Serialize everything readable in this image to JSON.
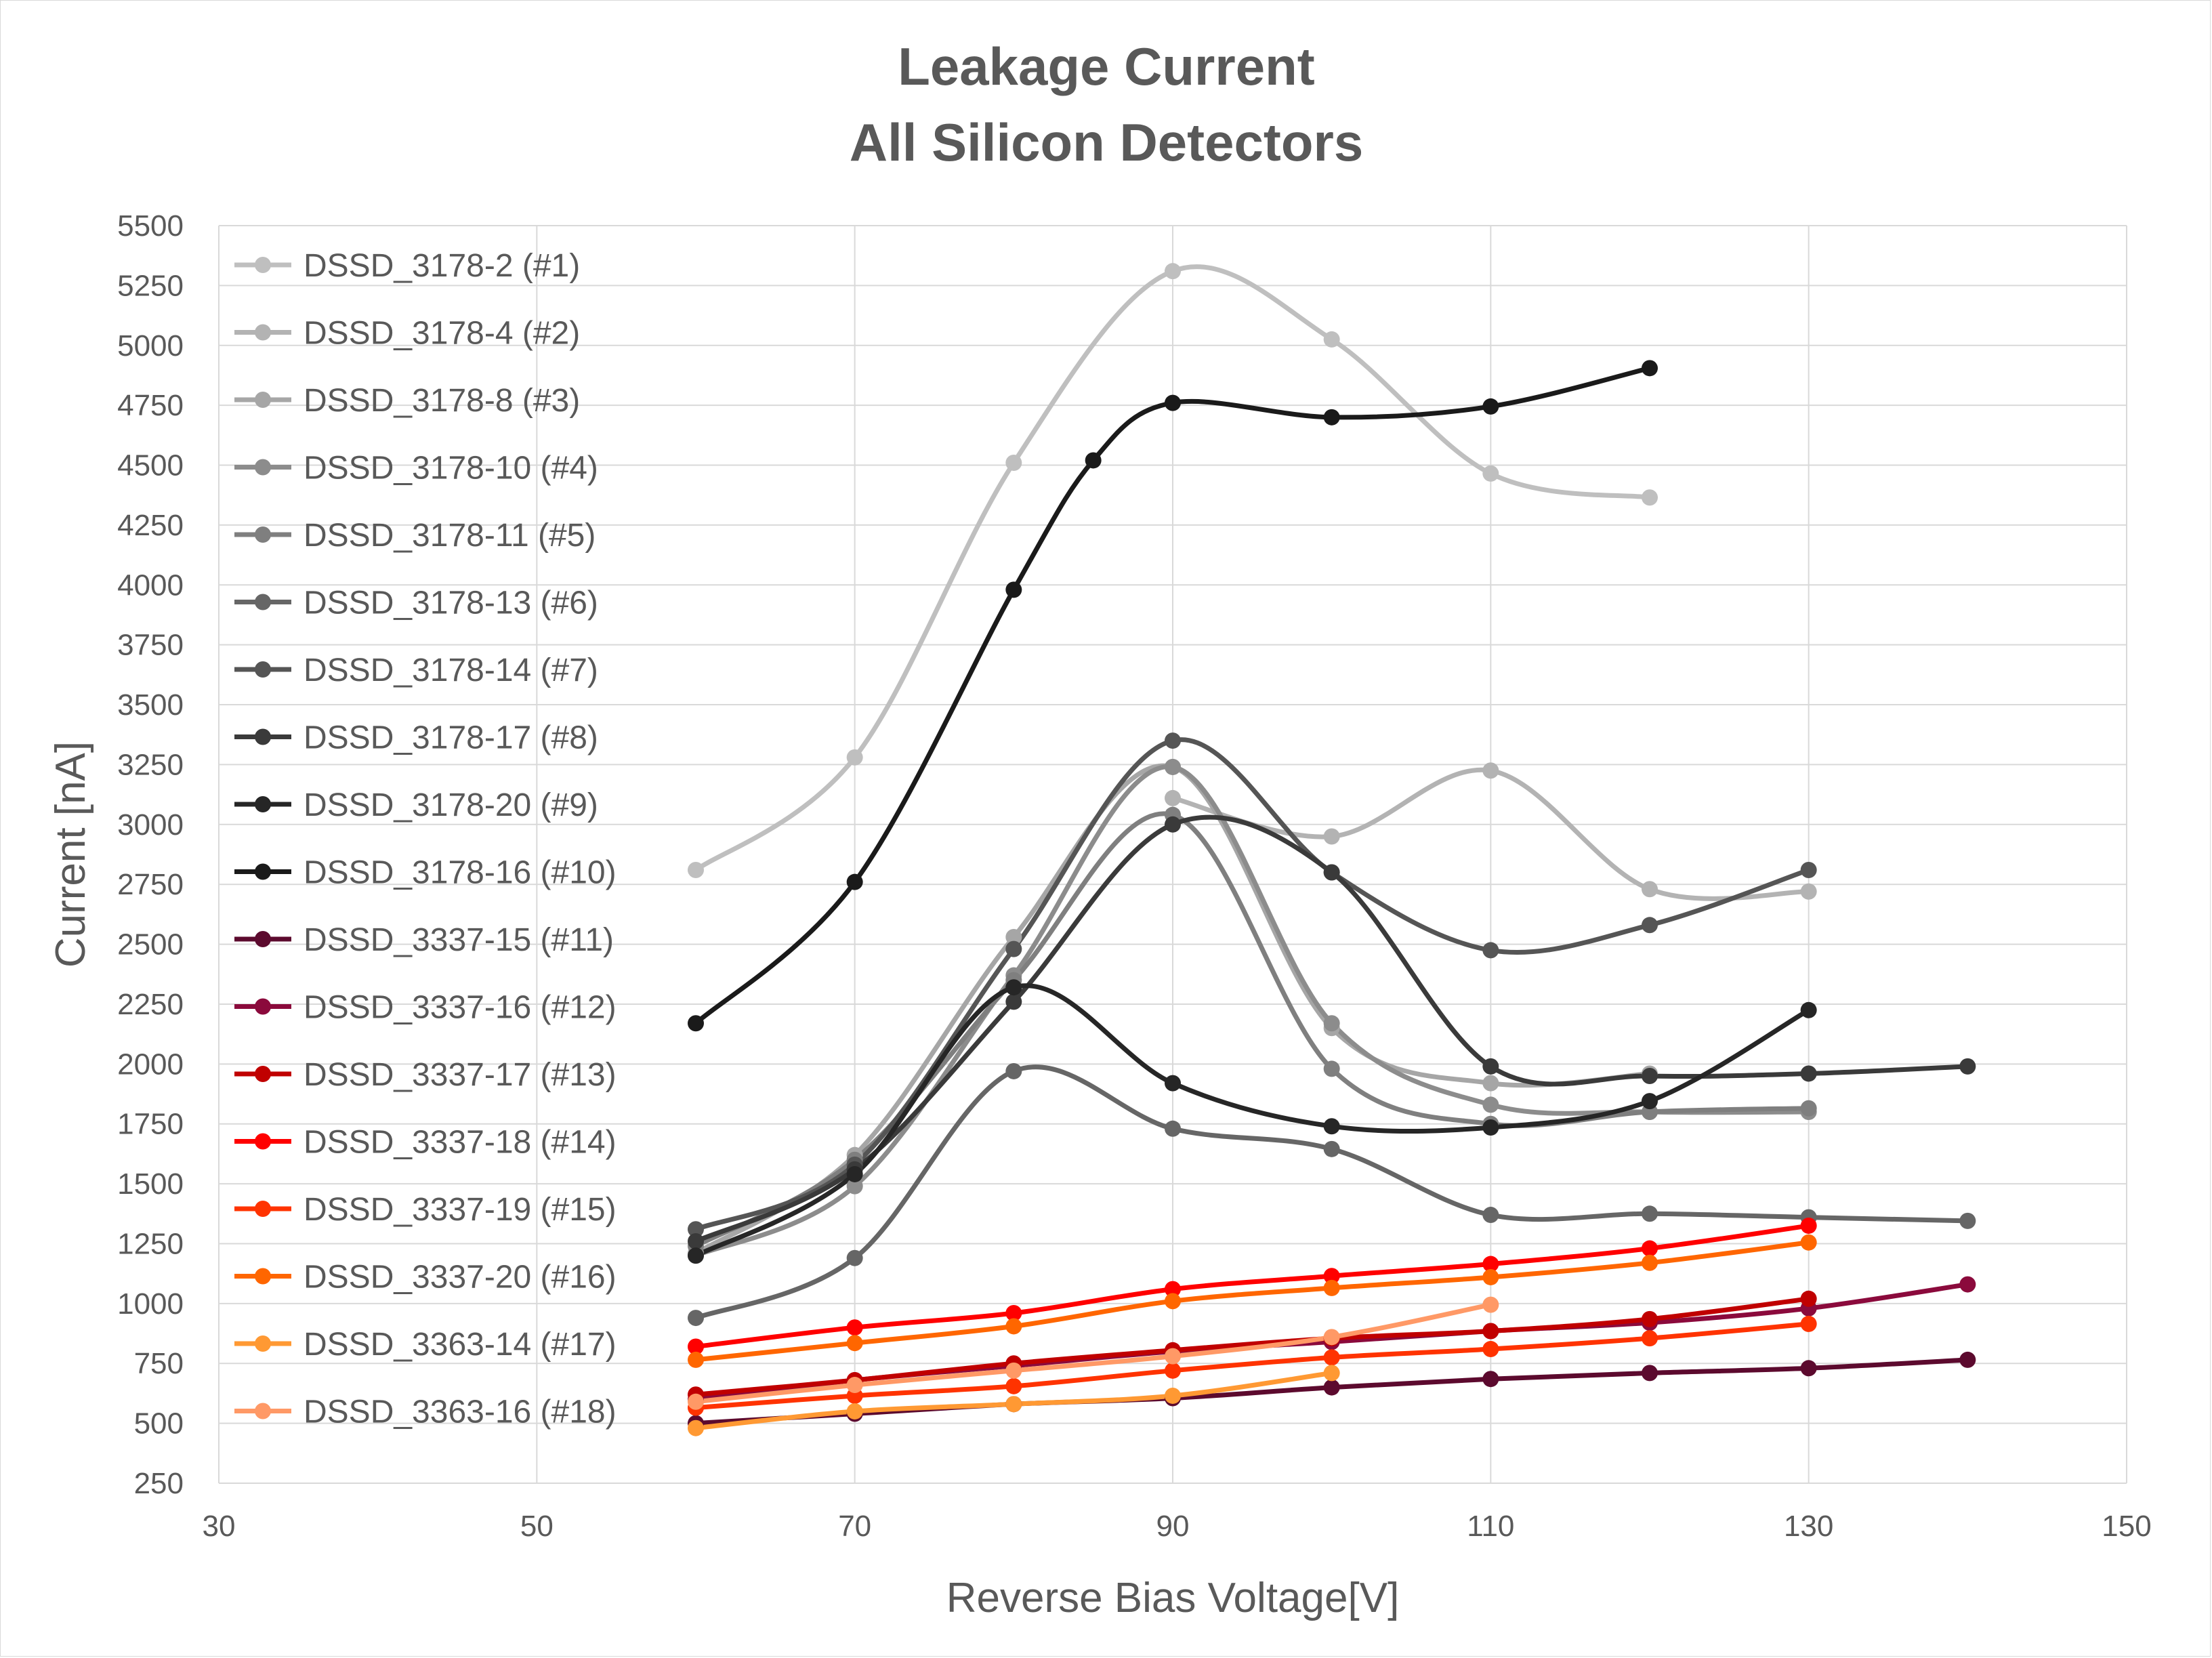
{
  "chart_data": {
    "type": "line",
    "title": [
      "Leakage Current",
      "All Silicon Detectors"
    ],
    "xlabel": "Reverse Bias Voltage[V]",
    "ylabel": "Current [nA]",
    "xlim": [
      30,
      150
    ],
    "ylim": [
      250,
      5500
    ],
    "xticks": [
      30,
      50,
      70,
      90,
      110,
      130,
      150
    ],
    "yticks": [
      250,
      500,
      750,
      1000,
      1250,
      1500,
      1750,
      2000,
      2250,
      2500,
      2750,
      3000,
      3250,
      3500,
      3750,
      4000,
      4250,
      4500,
      4750,
      5000,
      5250,
      5500
    ],
    "grid": true,
    "smooth": true,
    "legend_position": "top-left, inside plot",
    "series": [
      {
        "name": "DSSD_3178-2 (#1)",
        "color": "#bfbfbf",
        "points": [
          [
            60,
            2810
          ],
          [
            70,
            3280
          ],
          [
            80,
            4510
          ],
          [
            90,
            5310
          ],
          [
            100,
            5025
          ],
          [
            110,
            4465
          ],
          [
            120,
            4365
          ]
        ]
      },
      {
        "name": "DSSD_3178-4 (#2)",
        "color": "#b3b3b3",
        "points": [
          [
            90,
            3110
          ],
          [
            100,
            2950
          ],
          [
            110,
            3225
          ],
          [
            120,
            2730
          ],
          [
            130,
            2720
          ]
        ]
      },
      {
        "name": "DSSD_3178-8 (#3)",
        "color": "#a6a6a6",
        "points": [
          [
            60,
            1210
          ],
          [
            70,
            1620
          ],
          [
            80,
            2530
          ],
          [
            90,
            3240
          ],
          [
            100,
            2150
          ],
          [
            110,
            1920
          ],
          [
            120,
            1960
          ]
        ]
      },
      {
        "name": "DSSD_3178-10 (#4)",
        "color": "#8c8c8c",
        "points": [
          [
            60,
            1200
          ],
          [
            70,
            1490
          ],
          [
            80,
            2370
          ],
          [
            90,
            3240
          ],
          [
            100,
            2170
          ],
          [
            110,
            1830
          ],
          [
            120,
            1800
          ],
          [
            130,
            1800
          ]
        ]
      },
      {
        "name": "DSSD_3178-11 (#5)",
        "color": "#7f7f7f",
        "points": [
          [
            60,
            1240
          ],
          [
            70,
            1600
          ],
          [
            80,
            2350
          ],
          [
            90,
            3040
          ],
          [
            100,
            1980
          ],
          [
            110,
            1750
          ],
          [
            120,
            1800
          ],
          [
            130,
            1815
          ]
        ]
      },
      {
        "name": "DSSD_3178-13 (#6)",
        "color": "#666666",
        "points": [
          [
            60,
            940
          ],
          [
            70,
            1190
          ],
          [
            80,
            1970
          ],
          [
            90,
            1730
          ],
          [
            100,
            1645
          ],
          [
            110,
            1370
          ],
          [
            120,
            1375
          ],
          [
            130,
            1360
          ],
          [
            140,
            1345
          ]
        ]
      },
      {
        "name": "DSSD_3178-14 (#7)",
        "color": "#555555",
        "points": [
          [
            60,
            1310
          ],
          [
            70,
            1580
          ],
          [
            80,
            2480
          ],
          [
            90,
            3350
          ],
          [
            100,
            2800
          ],
          [
            110,
            2475
          ],
          [
            120,
            2580
          ],
          [
            130,
            2810
          ]
        ]
      },
      {
        "name": "DSSD_3178-17 (#8)",
        "color": "#3a3a3a",
        "points": [
          [
            60,
            1260
          ],
          [
            70,
            1560
          ],
          [
            80,
            2260
          ],
          [
            90,
            3000
          ],
          [
            100,
            2800
          ],
          [
            110,
            1990
          ],
          [
            120,
            1950
          ],
          [
            130,
            1960
          ],
          [
            140,
            1990
          ]
        ]
      },
      {
        "name": "DSSD_3178-20 (#9)",
        "color": "#262626",
        "points": [
          [
            60,
            1200
          ],
          [
            70,
            1540
          ],
          [
            80,
            2320
          ],
          [
            90,
            1920
          ],
          [
            100,
            1740
          ],
          [
            110,
            1735
          ],
          [
            120,
            1845
          ],
          [
            130,
            2225
          ]
        ]
      },
      {
        "name": "DSSD_3178-16 (#10)",
        "color": "#1a1a1a",
        "points": [
          [
            60,
            2170
          ],
          [
            70,
            2760
          ],
          [
            80,
            3980
          ],
          [
            85,
            4520
          ],
          [
            90,
            4760
          ],
          [
            100,
            4700
          ],
          [
            110,
            4745
          ],
          [
            120,
            4905
          ]
        ]
      },
      {
        "name": "DSSD_3337-15 (#11)",
        "color": "#5c0a2e",
        "points": [
          [
            60,
            500
          ],
          [
            70,
            540
          ],
          [
            80,
            580
          ],
          [
            90,
            605
          ],
          [
            100,
            650
          ],
          [
            110,
            685
          ],
          [
            120,
            710
          ],
          [
            130,
            730
          ],
          [
            140,
            765
          ]
        ]
      },
      {
        "name": "DSSD_3337-16 (#12)",
        "color": "#8b0a3c",
        "points": [
          [
            60,
            600
          ],
          [
            70,
            680
          ],
          [
            80,
            740
          ],
          [
            90,
            800
          ],
          [
            100,
            840
          ],
          [
            110,
            885
          ],
          [
            120,
            920
          ],
          [
            130,
            980
          ],
          [
            140,
            1080
          ]
        ]
      },
      {
        "name": "DSSD_3337-17 (#13)",
        "color": "#c00000",
        "points": [
          [
            60,
            620
          ],
          [
            70,
            680
          ],
          [
            80,
            750
          ],
          [
            90,
            805
          ],
          [
            100,
            855
          ],
          [
            110,
            885
          ],
          [
            120,
            935
          ],
          [
            130,
            1020
          ]
        ]
      },
      {
        "name": "DSSD_3337-18 (#14)",
        "color": "#ff0000",
        "points": [
          [
            60,
            820
          ],
          [
            70,
            900
          ],
          [
            80,
            960
          ],
          [
            90,
            1060
          ],
          [
            100,
            1115
          ],
          [
            110,
            1165
          ],
          [
            120,
            1230
          ],
          [
            130,
            1325
          ]
        ]
      },
      {
        "name": "DSSD_3337-19 (#15)",
        "color": "#ff3300",
        "points": [
          [
            60,
            565
          ],
          [
            70,
            615
          ],
          [
            80,
            655
          ],
          [
            90,
            720
          ],
          [
            100,
            775
          ],
          [
            110,
            810
          ],
          [
            120,
            855
          ],
          [
            130,
            915
          ]
        ]
      },
      {
        "name": "DSSD_3337-20 (#16)",
        "color": "#ff6600",
        "points": [
          [
            60,
            765
          ],
          [
            70,
            835
          ],
          [
            80,
            905
          ],
          [
            90,
            1010
          ],
          [
            100,
            1065
          ],
          [
            110,
            1110
          ],
          [
            120,
            1170
          ],
          [
            130,
            1255
          ]
        ]
      },
      {
        "name": "DSSD_3363-14 (#17)",
        "color": "#ff9933",
        "points": [
          [
            60,
            480
          ],
          [
            70,
            550
          ],
          [
            80,
            580
          ],
          [
            90,
            615
          ],
          [
            100,
            710
          ]
        ]
      },
      {
        "name": "DSSD_3363-16 (#18)",
        "color": "#ff9966",
        "points": [
          [
            60,
            590
          ],
          [
            70,
            660
          ],
          [
            80,
            720
          ],
          [
            90,
            780
          ],
          [
            100,
            860
          ],
          [
            110,
            995
          ]
        ]
      }
    ]
  }
}
